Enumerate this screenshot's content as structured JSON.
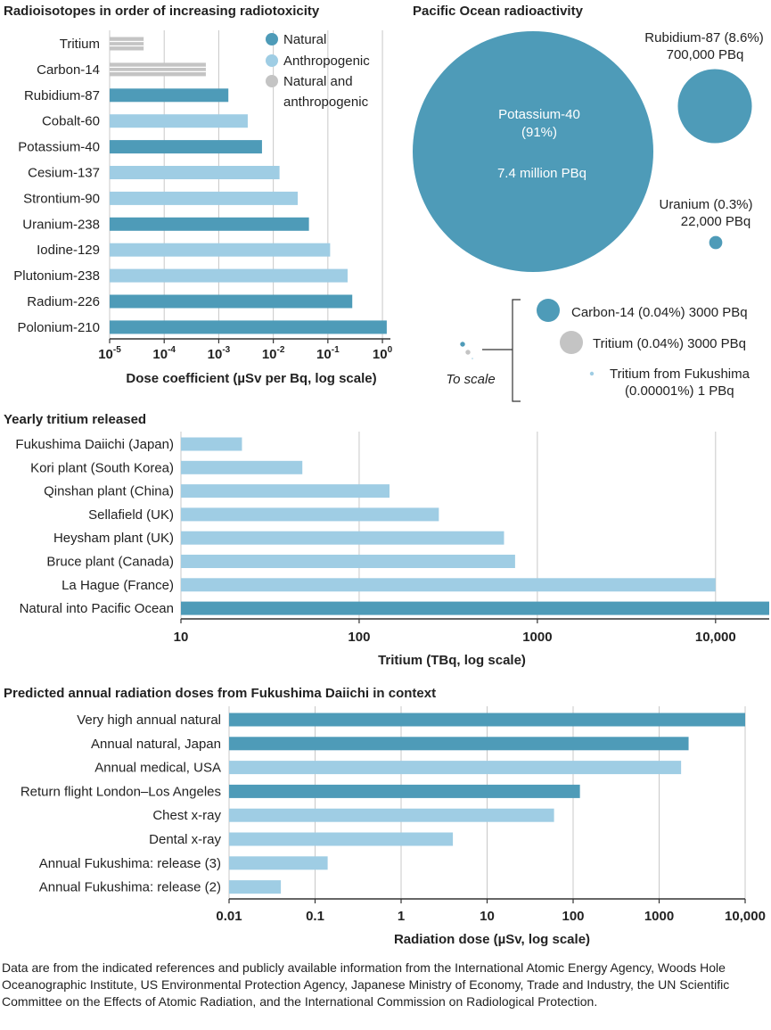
{
  "colors": {
    "natural": "#4e9bb8",
    "anthropogenic": "#9fcde4",
    "mixed": "#c4c4c4",
    "grid": "#c8c8c8",
    "axis": "#333333"
  },
  "footnote": "Data are from the indicated references and publicly available information from the International Atomic Energy Agency, Woods Hole Oceanographic Institute, US Environmental Protection Agency, Japanese Ministry of Economy, Trade and Industry, the UN Scientific Committee on the Effects of Atomic Radiation, and the International Commission on Radiological Protection.",
  "chart_data": [
    {
      "type": "bar",
      "orientation": "horizontal",
      "scale": "log",
      "title": "Radioisotopes in order of increasing radiotoxicity",
      "xlabel": "Dose coefficient (µSv per Bq, log scale)",
      "xlim": [
        1e-05,
        1.4
      ],
      "tick_values": [
        1e-05,
        0.0001,
        0.001,
        0.01,
        0.1,
        1
      ],
      "tick_base": "10",
      "tick_exponents": [
        "-5",
        "-4",
        "-3",
        "-2",
        "-1",
        "0"
      ],
      "legend": [
        {
          "name": "Natural",
          "category": "natural"
        },
        {
          "name": "Anthropogenic",
          "category": "anthropogenic"
        },
        {
          "name": "Natural and",
          "category": "mixed",
          "line2": "anthropogenic"
        }
      ],
      "categories": [
        "Tritium",
        "Carbon-14",
        "Rubidium-87",
        "Cobalt-60",
        "Potassium-40",
        "Cesium-137",
        "Strontium-90",
        "Uranium-238",
        "Iodine-129",
        "Plutonium-238",
        "Radium-226",
        "Polonium-210"
      ],
      "values": [
        4.2e-05,
        0.00058,
        0.0015,
        0.0034,
        0.0062,
        0.013,
        0.028,
        0.045,
        0.11,
        0.23,
        0.28,
        1.2
      ],
      "kinds": [
        "mixed",
        "mixed",
        "natural",
        "anthropogenic",
        "natural",
        "anthropogenic",
        "anthropogenic",
        "natural",
        "anthropogenic",
        "anthropogenic",
        "natural",
        "natural"
      ]
    },
    {
      "type": "bubble",
      "title": "Pacific Ocean radioactivity",
      "unit": "PBq",
      "items": [
        {
          "name": "Potassium-40",
          "value": 7400000,
          "kind": "natural",
          "percent": "(91%)",
          "value_label": "7.4 million PBq"
        },
        {
          "name": "Rubidium-87",
          "value": 700000,
          "kind": "natural",
          "label1": "Rubidium-87 (8.6%)",
          "label2": "700,000 PBq"
        },
        {
          "name": "Uranium",
          "value": 22000,
          "kind": "natural",
          "label1": "Uranium (0.3%)",
          "label2": "22,000 PBq"
        },
        {
          "name": "Carbon-14",
          "value": 3000,
          "kind": "natural",
          "label1": "Carbon-14 (0.04%) 3000 PBq"
        },
        {
          "name": "Tritium",
          "value": 3000,
          "kind": "mixed",
          "label1": "Tritium (0.04%) 3000 PBq"
        },
        {
          "name": "Tritium from Fukushima",
          "value": 1,
          "kind": "anthropogenic",
          "label1": "Tritium from Fukushima",
          "label2": "(0.00001%) 1 PBq"
        }
      ],
      "to_scale_label": "To scale"
    },
    {
      "type": "bar",
      "orientation": "horizontal",
      "scale": "log",
      "title": "Yearly tritium released",
      "xlabel": "Tritium (TBq, log scale)",
      "xlim": [
        10,
        20000
      ],
      "tick_values": [
        10,
        100,
        1000,
        10000
      ],
      "tick_labels": [
        "10",
        "100",
        "1000",
        "10,000"
      ],
      "categories": [
        "Fukushima Daiichi (Japan)",
        "Kori plant (South Korea)",
        "Qinshan plant (China)",
        "Sellafield (UK)",
        "Heysham plant (UK)",
        "Bruce plant (Canada)",
        "La Hague (France)",
        "Natural into Pacific Ocean"
      ],
      "values": [
        22,
        48,
        148,
        280,
        650,
        750,
        10000,
        20000
      ],
      "kinds": [
        "anthropogenic",
        "anthropogenic",
        "anthropogenic",
        "anthropogenic",
        "anthropogenic",
        "anthropogenic",
        "anthropogenic",
        "natural"
      ]
    },
    {
      "type": "bar",
      "orientation": "horizontal",
      "scale": "log",
      "title": "Predicted annual radiation doses from Fukushima Daiichi in context",
      "xlabel": "Radiation dose (µSv, log scale)",
      "xlim": [
        0.01,
        10000
      ],
      "tick_values": [
        0.01,
        0.1,
        1,
        10,
        100,
        1000,
        10000
      ],
      "tick_labels": [
        "0.01",
        "0.1",
        "1",
        "10",
        "100",
        "1000",
        "10,000"
      ],
      "categories": [
        "Very high annual natural",
        "Annual natural, Japan",
        "Annual medical, USA",
        "Return flight London–Los Angeles",
        "Chest x-ray",
        "Dental x-ray",
        "Annual Fukushima: release (3)",
        "Annual Fukushima: release (2)"
      ],
      "values": [
        10000,
        2200,
        1800,
        120,
        60,
        4,
        0.14,
        0.04
      ],
      "kinds": [
        "natural",
        "natural",
        "anthropogenic",
        "natural",
        "anthropogenic",
        "anthropogenic",
        "anthropogenic",
        "anthropogenic"
      ]
    }
  ]
}
